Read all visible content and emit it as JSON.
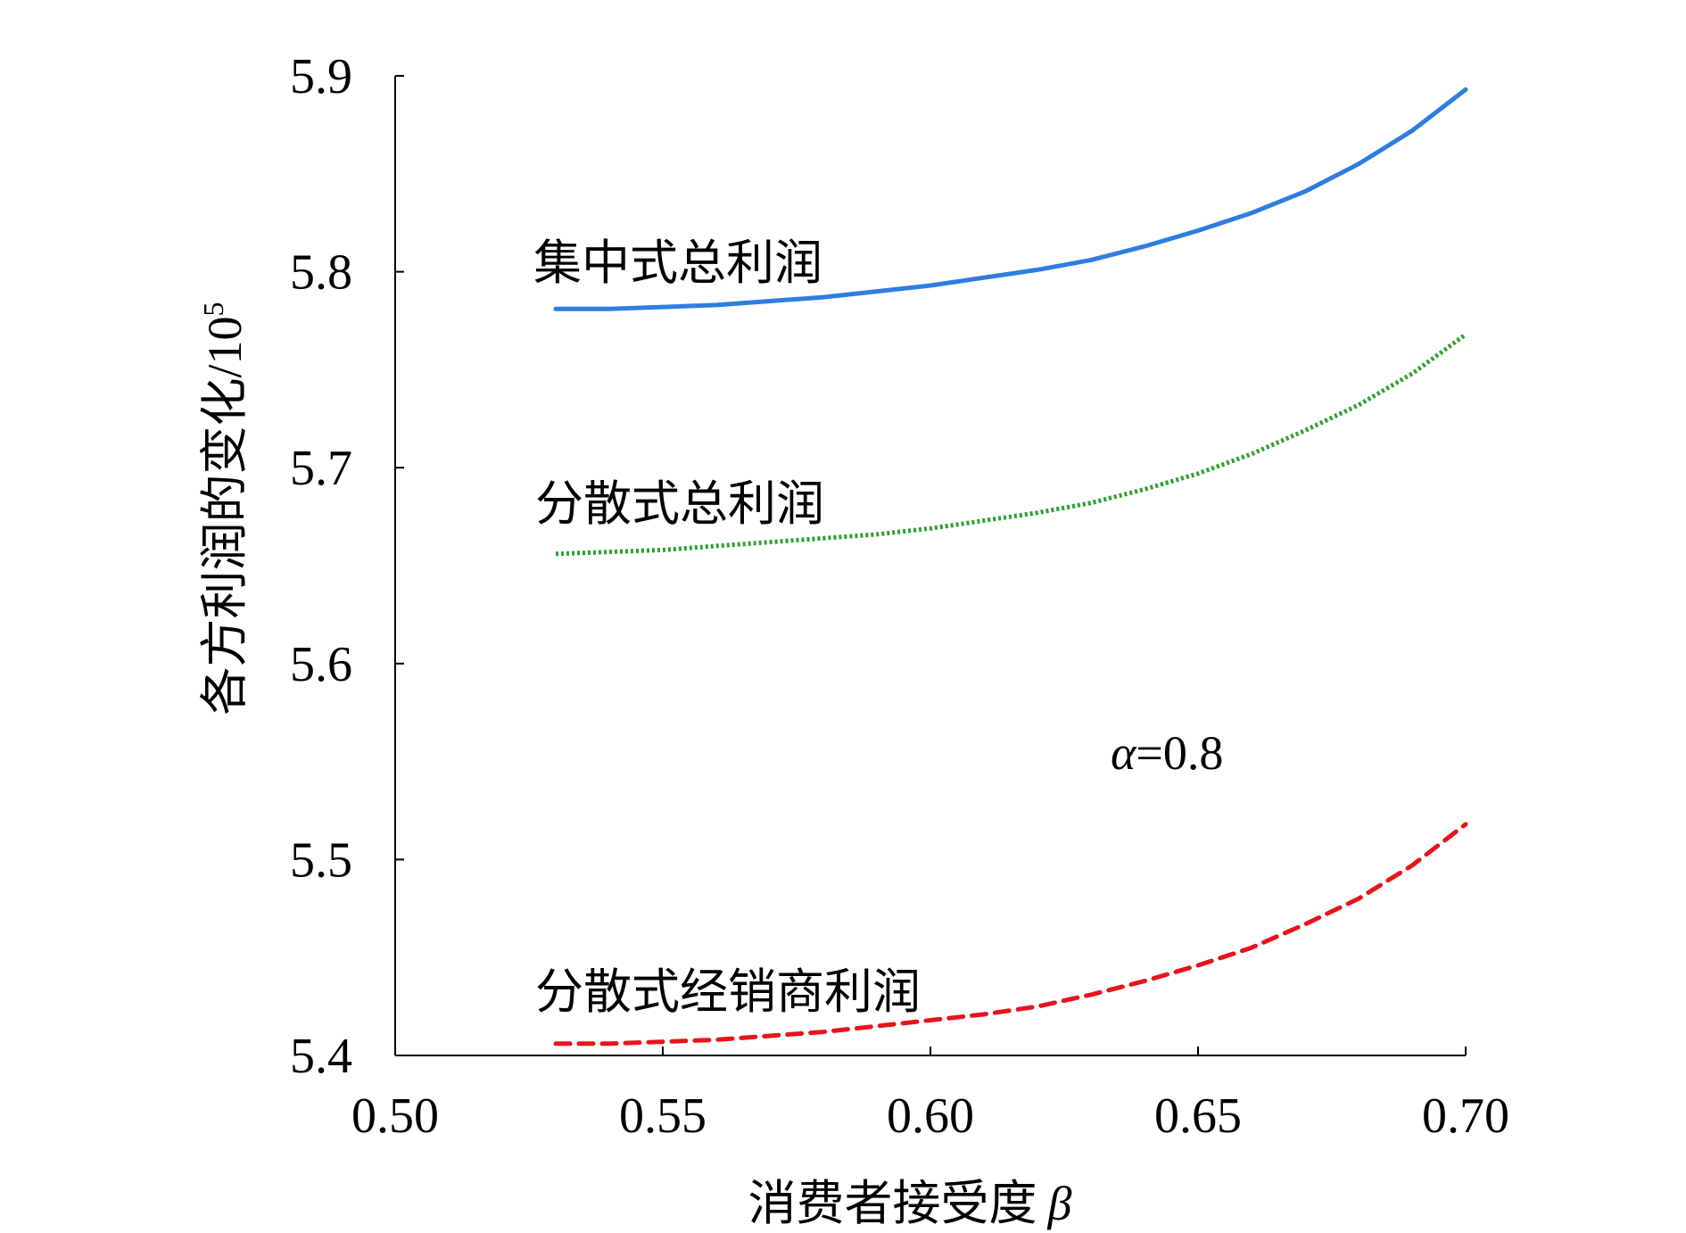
{
  "chart_data": {
    "type": "line",
    "xlabel": "消费者接受度",
    "xlabel_symbol": "β",
    "ylabel": "各方利润的变化/10",
    "ylabel_superscript": "5",
    "xlim": [
      0.5,
      0.7
    ],
    "ylim": [
      5.4,
      5.9
    ],
    "x_ticks": [
      "0.50",
      "0.55",
      "0.60",
      "0.65",
      "0.70"
    ],
    "y_ticks": [
      "5.4",
      "5.5",
      "5.6",
      "5.7",
      "5.8",
      "5.9"
    ],
    "grid": false,
    "legend": "none",
    "annotation": {
      "symbol": "α",
      "text": "=0.8"
    },
    "series": [
      {
        "name": "集中式总利润",
        "color": "#2f7de1",
        "style": "solid",
        "x": [
          0.53,
          0.54,
          0.55,
          0.56,
          0.57,
          0.58,
          0.59,
          0.6,
          0.61,
          0.62,
          0.63,
          0.64,
          0.65,
          0.66,
          0.67,
          0.68,
          0.69,
          0.7
        ],
        "y": [
          5.781,
          5.781,
          5.782,
          5.783,
          5.785,
          5.787,
          5.79,
          5.793,
          5.797,
          5.801,
          5.806,
          5.813,
          5.821,
          5.83,
          5.841,
          5.855,
          5.872,
          5.893
        ]
      },
      {
        "name": "分散式总利润",
        "color": "#2ca02c",
        "style": "dotted",
        "x": [
          0.53,
          0.54,
          0.55,
          0.56,
          0.57,
          0.58,
          0.59,
          0.6,
          0.61,
          0.62,
          0.63,
          0.64,
          0.65,
          0.66,
          0.67,
          0.68,
          0.69,
          0.7
        ],
        "y": [
          5.656,
          5.657,
          5.658,
          5.66,
          5.662,
          5.664,
          5.666,
          5.669,
          5.673,
          5.677,
          5.682,
          5.689,
          5.697,
          5.707,
          5.719,
          5.732,
          5.748,
          5.768
        ]
      },
      {
        "name": "分散式经销商利润",
        "color": "#e8141c",
        "style": "dashed",
        "x": [
          0.53,
          0.54,
          0.55,
          0.56,
          0.57,
          0.58,
          0.59,
          0.6,
          0.61,
          0.62,
          0.63,
          0.64,
          0.65,
          0.66,
          0.67,
          0.68,
          0.69,
          0.7
        ],
        "y": [
          5.406,
          5.406,
          5.407,
          5.408,
          5.41,
          5.412,
          5.415,
          5.418,
          5.421,
          5.425,
          5.431,
          5.438,
          5.446,
          5.455,
          5.467,
          5.48,
          5.497,
          5.518
        ]
      }
    ]
  }
}
